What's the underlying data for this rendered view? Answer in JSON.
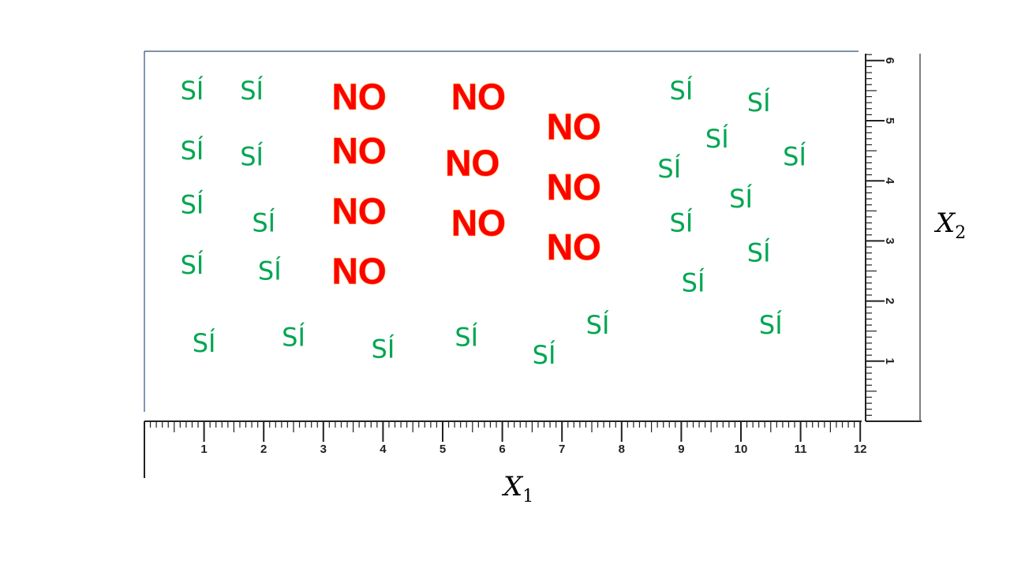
{
  "chart_data": {
    "type": "scatter",
    "xlabel": "X",
    "xlabel_sub": "1",
    "ylabel": "X",
    "ylabel_sub": "2",
    "xlim": [
      0,
      12
    ],
    "ylim": [
      0,
      6
    ],
    "x_ticks": [
      "1",
      "2",
      "3",
      "4",
      "5",
      "6",
      "7",
      "8",
      "9",
      "10",
      "11",
      "12"
    ],
    "y_ticks": [
      "1",
      "2",
      "3",
      "4",
      "5",
      "6"
    ],
    "grid": false,
    "axes_style": "rulers",
    "series": [
      {
        "name": "SÍ",
        "color": "#00a651",
        "points": [
          [
            0.8,
            5.5
          ],
          [
            1.8,
            5.5
          ],
          [
            0.8,
            4.5
          ],
          [
            1.8,
            4.4
          ],
          [
            0.8,
            3.6
          ],
          [
            2.0,
            3.3
          ],
          [
            0.8,
            2.6
          ],
          [
            2.1,
            2.5
          ],
          [
            1.0,
            1.3
          ],
          [
            2.5,
            1.4
          ],
          [
            4.0,
            1.2
          ],
          [
            5.4,
            1.4
          ],
          [
            6.7,
            1.1
          ],
          [
            7.6,
            1.6
          ],
          [
            9.0,
            5.5
          ],
          [
            10.3,
            5.3
          ],
          [
            9.6,
            4.7
          ],
          [
            10.9,
            4.4
          ],
          [
            8.8,
            4.2
          ],
          [
            10.0,
            3.7
          ],
          [
            9.0,
            3.3
          ],
          [
            10.3,
            2.8
          ],
          [
            9.2,
            2.3
          ],
          [
            10.5,
            1.6
          ]
        ]
      },
      {
        "name": "NO",
        "color": "#ff0000",
        "points": [
          [
            3.6,
            5.4
          ],
          [
            3.6,
            4.5
          ],
          [
            3.6,
            3.5
          ],
          [
            3.6,
            2.5
          ],
          [
            5.6,
            5.4
          ],
          [
            5.5,
            4.3
          ],
          [
            5.6,
            3.3
          ],
          [
            7.2,
            4.9
          ],
          [
            7.2,
            3.9
          ],
          [
            7.2,
            2.9
          ]
        ]
      }
    ]
  }
}
